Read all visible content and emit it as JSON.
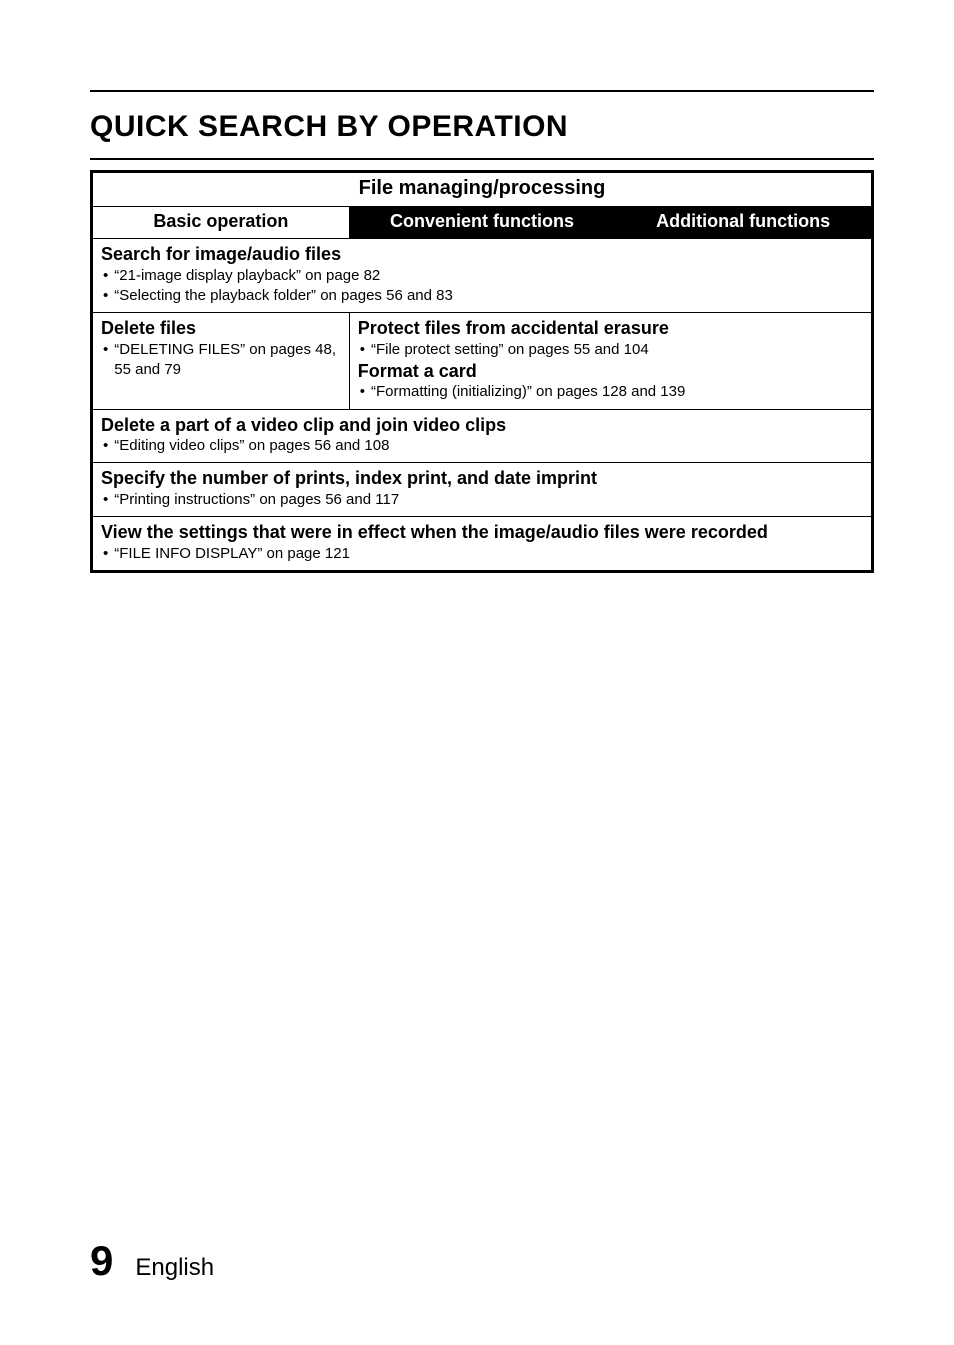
{
  "title": "QUICK SEARCH BY OPERATION",
  "section_header": "File managing/processing",
  "columns": {
    "basic": "Basic operation",
    "convenient": "Convenient functions",
    "additional": "Additional functions"
  },
  "rows": {
    "search": {
      "heading": "Search for image/audio files",
      "bullets": [
        "“21-image display playback” on page 82",
        "“Selecting the playback folder” on pages 56 and 83"
      ]
    },
    "delete": {
      "heading": "Delete files",
      "bullets": [
        "“DELETING FILES” on pages 48, 55 and 79"
      ]
    },
    "protect_format": {
      "protect_heading": "Protect files from accidental erasure",
      "protect_bullets": [
        "“File protect setting” on pages 55 and 104"
      ],
      "format_heading": "Format a card",
      "format_bullets": [
        "“Formatting (initializing)” on pages 128 and 139"
      ]
    },
    "edit": {
      "heading": "Delete a part of a video clip and join video clips",
      "bullets": [
        "“Editing video clips” on pages 56 and 108"
      ]
    },
    "print": {
      "heading": "Specify the number of prints, index print, and date imprint",
      "bullets": [
        "“Printing instructions” on pages 56 and 117"
      ]
    },
    "info": {
      "heading": "View the settings that were in effect when the image/audio files were recorded",
      "bullets": [
        "“FILE INFO DISPLAY” on page 121"
      ]
    }
  },
  "footer": {
    "page": "9",
    "language": "English"
  },
  "colors": {
    "text": "#000000",
    "bg": "#ffffff",
    "header_dark_bg": "#000000",
    "header_dark_text": "#ffffff"
  }
}
